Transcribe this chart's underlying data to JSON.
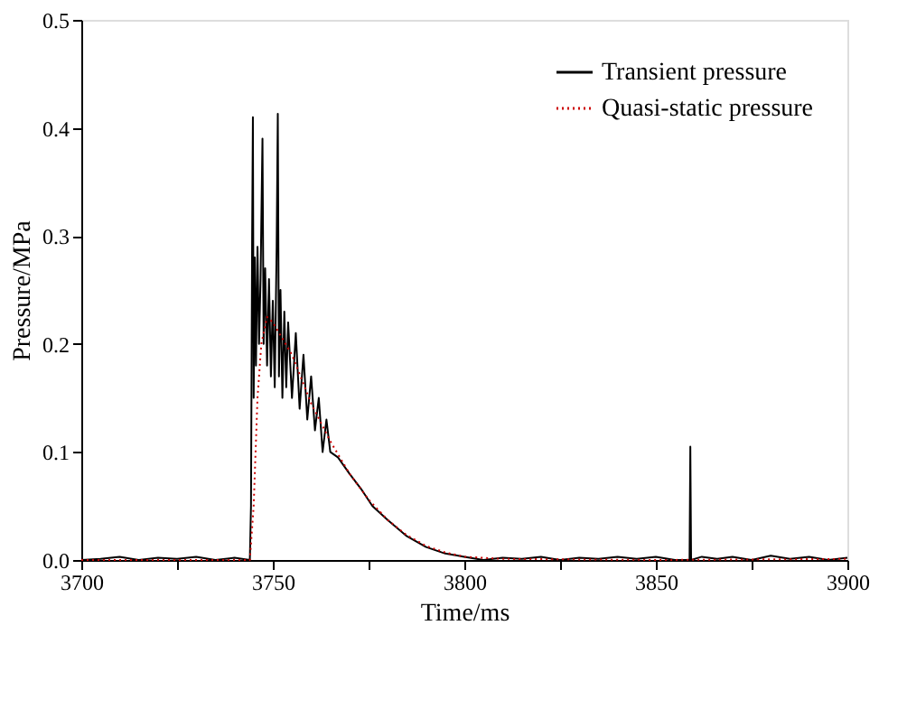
{
  "chart_data": {
    "type": "line",
    "xlabel": "Time/ms",
    "ylabel": "Pressure/MPa",
    "xlim": [
      3700,
      3900
    ],
    "ylim": [
      0,
      0.5
    ],
    "xticks": [
      3700,
      {
        "value": 3725,
        "label": null
      },
      3750,
      {
        "value": 3775,
        "label": null
      },
      3800,
      {
        "value": 3825,
        "label": null
      },
      3850,
      {
        "value": 3875,
        "label": null
      },
      3900
    ],
    "yticks": [
      {
        "value": 0,
        "label": "0.0"
      },
      0.1,
      0.2,
      0.3,
      0.4,
      0.5
    ],
    "grid": false,
    "legend": "top right",
    "marker": "none",
    "series": [
      {
        "name": "Transient pressure",
        "color": "#000000",
        "line_style": "solid",
        "x": [
          3700,
          3705,
          3710,
          3715,
          3720,
          3725,
          3730,
          3735,
          3740,
          3744,
          3744.3,
          3744.6,
          3744.8,
          3745.0,
          3745.3,
          3745.6,
          3746,
          3746.4,
          3746.8,
          3747.3,
          3747.6,
          3748,
          3748.5,
          3749,
          3749.5,
          3750,
          3750.5,
          3751,
          3751.3,
          3751.6,
          3752,
          3752.5,
          3753,
          3753.5,
          3754,
          3755,
          3756,
          3757,
          3758,
          3759,
          3760,
          3761,
          3762,
          3763,
          3764,
          3765,
          3767,
          3770,
          3773,
          3776,
          3780,
          3785,
          3790,
          3795,
          3800,
          3805,
          3810,
          3815,
          3820,
          3825,
          3830,
          3835,
          3840,
          3845,
          3850,
          3855,
          3858.8,
          3859,
          3859.2,
          3862,
          3866,
          3870,
          3875,
          3880,
          3885,
          3890,
          3895,
          3900
        ],
        "values": [
          0.0,
          0.001,
          0.003,
          0.0,
          0.002,
          0.001,
          0.003,
          0.0,
          0.002,
          0.0,
          0.05,
          0.3,
          0.41,
          0.15,
          0.28,
          0.18,
          0.29,
          0.2,
          0.26,
          0.39,
          0.2,
          0.27,
          0.18,
          0.26,
          0.17,
          0.24,
          0.16,
          0.29,
          0.413,
          0.17,
          0.25,
          0.15,
          0.23,
          0.16,
          0.22,
          0.15,
          0.21,
          0.14,
          0.19,
          0.13,
          0.17,
          0.12,
          0.15,
          0.1,
          0.13,
          0.1,
          0.095,
          0.08,
          0.066,
          0.05,
          0.037,
          0.022,
          0.012,
          0.006,
          0.003,
          0.0,
          0.002,
          0.001,
          0.003,
          0.0,
          0.002,
          0.001,
          0.003,
          0.001,
          0.003,
          0.0,
          0.0,
          0.105,
          0.0,
          0.003,
          0.001,
          0.003,
          0.0,
          0.004,
          0.001,
          0.003,
          0.0,
          0.002
        ]
      },
      {
        "name": "Quasi-static pressure",
        "color": "#cc0000",
        "line_style": "dotted",
        "x": [
          3700,
          3744,
          3745,
          3746,
          3747,
          3748.5,
          3750,
          3755,
          3760,
          3765,
          3770,
          3775,
          3780,
          3785,
          3790,
          3795,
          3800,
          3810,
          3850,
          3900
        ],
        "values": [
          0,
          0,
          0.05,
          0.15,
          0.2,
          0.225,
          0.22,
          0.19,
          0.145,
          0.11,
          0.08,
          0.056,
          0.037,
          0.023,
          0.013,
          0.007,
          0.003,
          0.001,
          0.0,
          0.001
        ]
      }
    ]
  }
}
